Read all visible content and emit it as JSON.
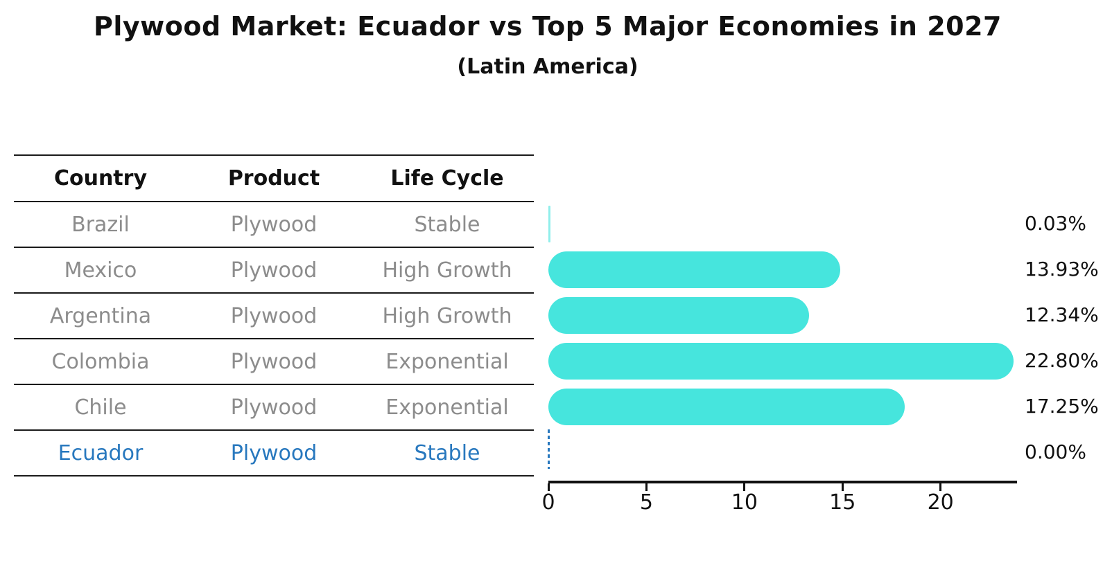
{
  "title": "Plywood Market: Ecuador vs Top 5 Major Economies in 2027",
  "subtitle": "(Latin America)",
  "table": {
    "headers": [
      "Country",
      "Product",
      "Life Cycle"
    ]
  },
  "chart_data": {
    "type": "bar",
    "orientation": "horizontal",
    "title": "Plywood Market: Ecuador vs Top 5 Major Economies in 2027",
    "subtitle": "(Latin America)",
    "xlabel": "",
    "ylabel": "",
    "xlim": [
      0,
      23.9
    ],
    "xticks": [
      0,
      5,
      10,
      15,
      20
    ],
    "grid": false,
    "legend": "none",
    "bar_color": "#46E5DD",
    "highlight_color": "#2878BE",
    "row_text_color": "#8c8c8c",
    "categories": [
      "Brazil",
      "Mexico",
      "Argentina",
      "Colombia",
      "Chile",
      "Ecuador"
    ],
    "values": [
      0.03,
      13.93,
      12.34,
      22.8,
      17.25,
      0.0
    ],
    "rows": [
      {
        "country": "Brazil",
        "product": "Plywood",
        "life_cycle": "Stable",
        "value": 0.03,
        "label": "0.03%",
        "highlight": false
      },
      {
        "country": "Mexico",
        "product": "Plywood",
        "life_cycle": "High Growth",
        "value": 13.93,
        "label": "13.93%",
        "highlight": false
      },
      {
        "country": "Argentina",
        "product": "Plywood",
        "life_cycle": "High Growth",
        "value": 12.34,
        "label": "12.34%",
        "highlight": false
      },
      {
        "country": "Colombia",
        "product": "Plywood",
        "life_cycle": "Exponential",
        "value": 22.8,
        "label": "22.80%",
        "highlight": false
      },
      {
        "country": "Chile",
        "product": "Plywood",
        "life_cycle": "Exponential",
        "value": 17.25,
        "label": "17.25%",
        "highlight": false
      },
      {
        "country": "Ecuador",
        "product": "Plywood",
        "life_cycle": "Stable",
        "value": 0.0,
        "label": "0.00%",
        "highlight": true
      }
    ]
  }
}
